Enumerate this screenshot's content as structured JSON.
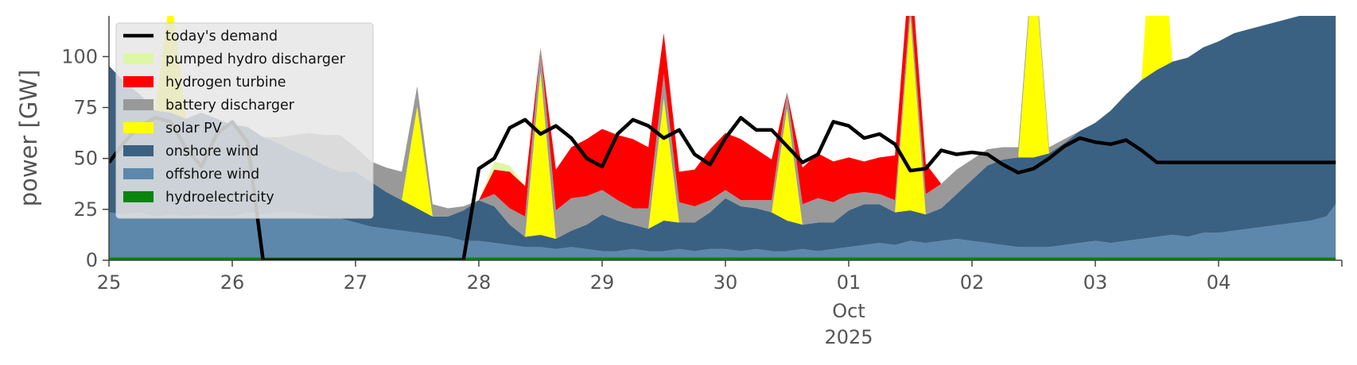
{
  "chart_data": {
    "type": "area",
    "title": "",
    "xlabel": "",
    "ylabel": "power [GW]",
    "ylim": [
      0,
      120
    ],
    "y_ticks": [
      "0",
      "25",
      "50",
      "75",
      "100"
    ],
    "x_ticks": [
      "25",
      "26",
      "27",
      "28",
      "29",
      "30",
      "01",
      "02",
      "03",
      "04"
    ],
    "x_month": "Oct",
    "x_year": "2025",
    "grid": false,
    "legend_position": "top-left",
    "colors": {
      "demand": "#000000",
      "pumped_hydro": "#ddf7a6",
      "hydrogen": "#ff0000",
      "battery": "#999999",
      "solar": "#ffff00",
      "onshore": "#3b6182",
      "offshore": "#5d88ab",
      "hydro": "#0a840a"
    },
    "legend": [
      {
        "label": "today's demand",
        "key": "demand",
        "kind": "line"
      },
      {
        "label": "pumped hydro discharger",
        "key": "pumped_hydro",
        "kind": "patch"
      },
      {
        "label": "hydrogen turbine",
        "key": "hydrogen",
        "kind": "patch"
      },
      {
        "label": "battery discharger",
        "key": "battery",
        "kind": "patch"
      },
      {
        "label": "solar PV",
        "key": "solar",
        "kind": "patch"
      },
      {
        "label": "onshore wind",
        "key": "onshore",
        "kind": "patch"
      },
      {
        "label": "offshore wind",
        "key": "offshore",
        "kind": "patch"
      },
      {
        "label": "hydroelectricity",
        "key": "hydro",
        "kind": "patch"
      }
    ],
    "series_day_positions": [
      0,
      0.125,
      0.25,
      0.375,
      0.5,
      0.625,
      0.75,
      0.875,
      1,
      1.125,
      1.25,
      1.375,
      1.5,
      1.625,
      1.75,
      1.875,
      2,
      2.125,
      2.25,
      2.375,
      2.5,
      2.625,
      2.75,
      2.875,
      3,
      3.125,
      3.25,
      3.375,
      3.5,
      3.625,
      3.75,
      3.875,
      4,
      4.125,
      4.25,
      4.375,
      4.5,
      4.625,
      4.75,
      4.875,
      5,
      5.125,
      5.25,
      5.375,
      5.5,
      5.625,
      5.75,
      5.875,
      6,
      6.125,
      6.25,
      6.375,
      6.5,
      6.625,
      6.75,
      6.875,
      7,
      7.125,
      7.25,
      7.375,
      7.5,
      7.625,
      7.75,
      7.875,
      8,
      8.125,
      8.25,
      8.375,
      8.5,
      8.625,
      8.75,
      8.875,
      9,
      9.125,
      9.25,
      9.375,
      9.5,
      9.625,
      9.75,
      9.875,
      9.95
    ],
    "series": [
      {
        "name": "hydroelectricity",
        "key": "hydro",
        "values": [
          1.5,
          1.5,
          1.5,
          1.5,
          1.5,
          1.5,
          1.5,
          1.5,
          1.5,
          1.5,
          1.5,
          1.5,
          1.5,
          1.5,
          1.5,
          1.5,
          1.5,
          1.5,
          1.5,
          1.5,
          1.5,
          1.5,
          1.5,
          1.5,
          1.5,
          1.5,
          1.5,
          1.5,
          1.5,
          1.5,
          1.5,
          1.5,
          1.5,
          1.5,
          1.5,
          1.5,
          1.5,
          1.5,
          1.5,
          1.5,
          1.5,
          1.5,
          1.5,
          1.5,
          1.5,
          1.5,
          1.5,
          1.5,
          1.5,
          1.5,
          1.5,
          1.5,
          1.5,
          1.5,
          1.5,
          1.5,
          1.5,
          1.5,
          1.5,
          1.5,
          1.5,
          1.5,
          1.5,
          1.5,
          1.5,
          1.5,
          1.5,
          1.5,
          1.5,
          1.5,
          1.5,
          1.5,
          1.5,
          1.5,
          1.5,
          1.5,
          1.5,
          1.5,
          1.5,
          1.5,
          1.5
        ]
      },
      {
        "name": "offshore wind",
        "key": "offshore",
        "values": [
          22,
          21,
          22,
          20,
          21,
          20,
          21,
          20,
          20,
          22,
          21,
          22,
          22,
          21,
          20,
          19,
          17,
          15,
          14,
          13,
          12,
          11,
          10,
          8,
          8,
          7,
          6,
          5,
          5,
          4,
          5,
          4,
          3,
          3,
          4,
          3,
          3,
          4,
          3,
          4,
          4,
          3,
          4,
          3,
          3,
          4,
          3,
          4,
          5,
          6,
          7,
          6,
          8,
          7,
          8,
          9,
          8,
          7,
          6,
          5,
          5,
          5,
          6,
          7,
          8,
          7,
          8,
          9,
          10,
          11,
          10,
          12,
          12,
          13,
          14,
          15,
          16,
          17,
          18,
          20,
          26
        ]
      },
      {
        "name": "onshore wind",
        "key": "onshore",
        "values": [
          72,
          65,
          58,
          52,
          50,
          48,
          50,
          48,
          45,
          42,
          38,
          34,
          30,
          28,
          25,
          23,
          25,
          22,
          18,
          15,
          12,
          9,
          10,
          15,
          20,
          18,
          10,
          5,
          6,
          5,
          8,
          12,
          18,
          15,
          12,
          11,
          15,
          13,
          14,
          18,
          25,
          22,
          20,
          19,
          15,
          12,
          14,
          13,
          18,
          20,
          19,
          16,
          15,
          14,
          16,
          22,
          30,
          38,
          42,
          44,
          44,
          46,
          50,
          55,
          58,
          65,
          72,
          78,
          82,
          85,
          88,
          91,
          94,
          97,
          98,
          99,
          100,
          101,
          102,
          103,
          104
        ]
      },
      {
        "name": "solar PV",
        "key": "solar",
        "values": [
          0,
          0,
          0,
          0,
          60,
          0,
          0,
          0,
          0,
          0,
          0,
          0,
          0,
          0,
          0,
          0,
          0,
          0,
          0,
          0,
          50,
          0,
          0,
          0,
          0,
          0,
          0,
          0,
          80,
          0,
          0,
          0,
          0,
          0,
          0,
          0,
          60,
          0,
          0,
          0,
          0,
          0,
          0,
          0,
          55,
          0,
          0,
          0,
          0,
          0,
          0,
          0,
          95,
          0,
          0,
          0,
          0,
          0,
          0,
          0,
          100,
          0,
          0,
          0,
          0,
          0,
          0,
          0,
          110,
          0,
          0,
          0,
          0,
          0,
          0,
          0,
          0,
          0,
          0,
          0,
          0
        ]
      },
      {
        "name": "battery discharger",
        "key": "battery",
        "values": [
          0,
          0,
          0,
          0,
          0,
          0,
          0,
          0,
          0,
          0,
          0,
          3,
          8,
          12,
          15,
          18,
          12,
          10,
          12,
          14,
          10,
          6,
          4,
          2,
          0,
          6,
          8,
          10,
          12,
          14,
          16,
          14,
          12,
          10,
          8,
          10,
          12,
          10,
          8,
          6,
          4,
          3,
          4,
          6,
          8,
          10,
          12,
          10,
          8,
          6,
          5,
          6,
          8,
          10,
          12,
          12,
          10,
          8,
          6,
          5,
          4,
          3,
          2,
          0,
          0,
          0,
          0,
          0,
          0,
          0,
          0,
          0,
          0,
          0,
          0,
          0,
          0,
          0,
          0,
          0,
          0
        ]
      },
      {
        "name": "hydrogen turbine",
        "key": "hydrogen",
        "values": [
          0,
          0,
          0,
          0,
          0,
          0,
          0,
          0,
          0,
          0,
          0,
          0,
          0,
          0,
          0,
          0,
          0,
          0,
          0,
          0,
          0,
          0,
          0,
          0,
          0,
          12,
          18,
          15,
          0,
          20,
          25,
          28,
          30,
          32,
          34,
          30,
          20,
          15,
          18,
          25,
          28,
          30,
          25,
          20,
          0,
          18,
          22,
          20,
          18,
          15,
          18,
          22,
          20,
          15,
          0,
          0,
          0,
          0,
          0,
          0,
          0,
          0,
          0,
          0,
          0,
          0,
          0,
          0,
          0,
          0,
          0,
          0,
          0,
          0,
          0,
          0,
          0,
          0,
          0,
          0,
          0
        ]
      },
      {
        "name": "pumped hydro discharger",
        "key": "pumped_hydro",
        "values": [
          0,
          0,
          0,
          0,
          0,
          0,
          0,
          0,
          0,
          0,
          0,
          0,
          0,
          0,
          0,
          0,
          0,
          0,
          0,
          0,
          0,
          0,
          0,
          0,
          0,
          4,
          3,
          0,
          0,
          0,
          0,
          0,
          0,
          0,
          0,
          0,
          0,
          0,
          0,
          0,
          0,
          0,
          0,
          0,
          0,
          0,
          0,
          0,
          0,
          0,
          0,
          0,
          0,
          0,
          0,
          0,
          0,
          0,
          0,
          0,
          0,
          0,
          0,
          0,
          0,
          0,
          0,
          0,
          0,
          0,
          0,
          0,
          0,
          0,
          0,
          0,
          0,
          0,
          0,
          0,
          0
        ]
      },
      {
        "name": "today's demand",
        "key": "demand",
        "kind": "line",
        "values": [
          48,
          58,
          66,
          70,
          68,
          55,
          46,
          62,
          68,
          58,
          0,
          0,
          0,
          0,
          0,
          0,
          0,
          0,
          0,
          0,
          0,
          0,
          0,
          0,
          45,
          50,
          65,
          69,
          62,
          66,
          60,
          50,
          46,
          62,
          69,
          66,
          60,
          64,
          52,
          47,
          60,
          70,
          64,
          64,
          56,
          48,
          52,
          68,
          66,
          60,
          62,
          57,
          44,
          45,
          54,
          52,
          53,
          52,
          47,
          43,
          45,
          50,
          56,
          60,
          58,
          57,
          59,
          54,
          48,
          48,
          48,
          48,
          48,
          48,
          48,
          48,
          48,
          48,
          48,
          48,
          48
        ]
      }
    ]
  }
}
